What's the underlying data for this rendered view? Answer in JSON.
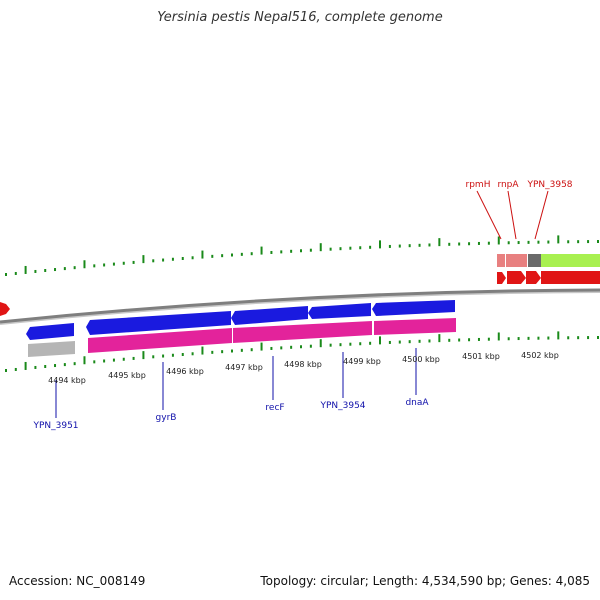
{
  "title": "Yersinia pestis Nepal516, complete genome",
  "accession_label": "Accession: NC_008149",
  "topology_label": "Topology: circular; Length: 4,534,590 bp; Genes: 4,085",
  "colors": {
    "backbone": "#7f7f7f",
    "tick": "#1a8a1a",
    "gene_blue": "#1a1adf",
    "cds_pink": "#e3239b",
    "gene_red": "#e01515",
    "rrna_salmon": "#e88080",
    "grey_feature": "#b5b5b5",
    "dark_grey_feature": "#6a6a6a",
    "lime_feature": "#a8f050",
    "label_blue": "#1010aa",
    "label_red": "#cc1010",
    "kbp_text": "#222222"
  },
  "kbp_labels": [
    "4494 kbp",
    "4495 kbp",
    "4496 kbp",
    "4497 kbp",
    "4498 kbp",
    "4499 kbp",
    "4500 kbp",
    "4501 kbp",
    "4502 kbp"
  ],
  "lower_gene_labels": [
    "YPN_3951",
    "gyrB",
    "recF",
    "YPN_3954",
    "dnaA"
  ],
  "upper_gene_labels": [
    "rpmH",
    "rnpA",
    "YPN_3958"
  ]
}
